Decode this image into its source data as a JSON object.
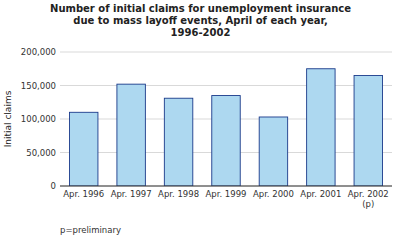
{
  "chart_data": {
    "type": "bar",
    "title": "Number of initial claims for unemployment insurance\ndue to mass layoff events, April of each year,\n1996-2002",
    "y_label": "Initial claims",
    "categories": [
      "Apr. 1996",
      "Apr. 1997",
      "Apr. 1998",
      "Apr. 1999",
      "Apr. 2000",
      "Apr. 2001",
      "Apr. 2002\n(p)"
    ],
    "values": [
      110000,
      152000,
      131000,
      135000,
      103000,
      175000,
      165000
    ],
    "color": "#add8f0",
    "ylim": [
      0,
      200000
    ],
    "yticks": [
      0,
      {
        "value": 50000,
        "label": "50,000"
      },
      {
        "value": 100000,
        "label": "100,000"
      },
      {
        "value": 150000,
        "label": "150,000"
      },
      {
        "value": 200000,
        "label": "200,000"
      }
    ],
    "grid": true,
    "annotations": [
      "p=preliminary"
    ]
  }
}
